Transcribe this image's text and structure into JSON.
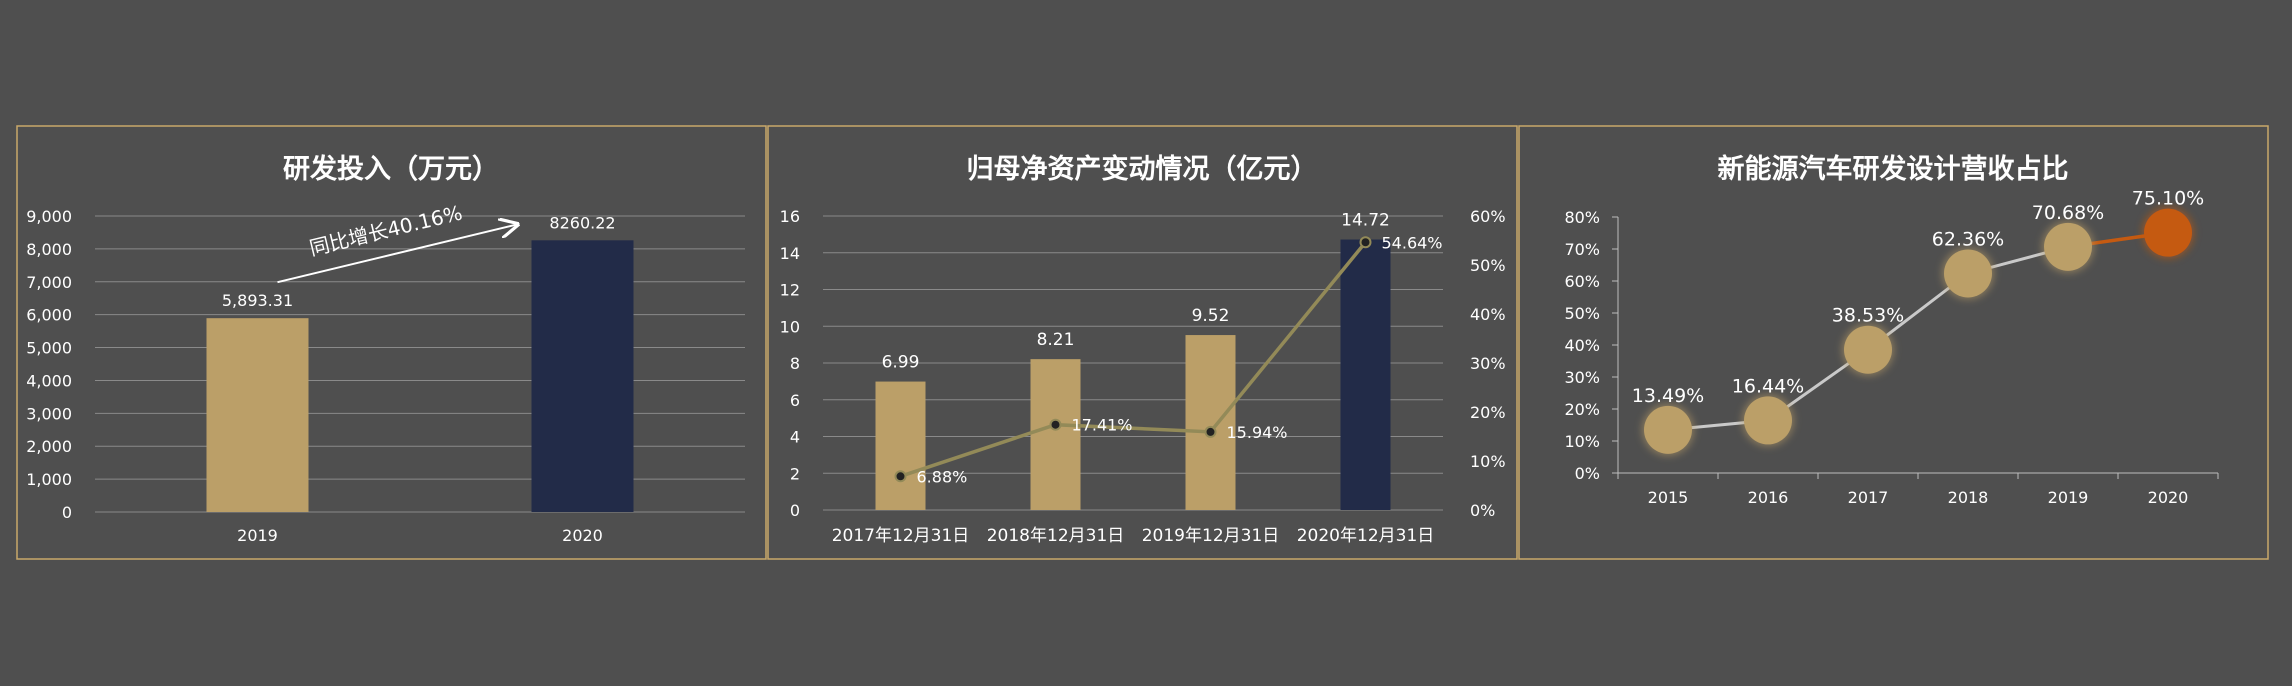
{
  "colors": {
    "background": "#4f4f4f",
    "frame": "#c9a86a",
    "gold": "#bb9f68",
    "navy": "#222b48",
    "line_olive": "#938a58",
    "orange": "#c55a11",
    "text": "#ffffff",
    "grid": "#8a8a8a"
  },
  "chart_data": [
    {
      "type": "bar",
      "title": "研发投入（万元）",
      "categories": [
        "2019",
        "2020"
      ],
      "values": [
        5893.31,
        8260.22
      ],
      "value_labels": [
        "5,893.31",
        "8260.22"
      ],
      "ylim": [
        0,
        9000
      ],
      "yticks": [
        "0",
        "1,000",
        "2,000",
        "3,000",
        "4,000",
        "5,000",
        "6,000",
        "7,000",
        "8,000",
        "9,000"
      ],
      "grid": true,
      "annotation": "同比增长40.16%"
    },
    {
      "type": "bar",
      "title": "归母净资产变动情况（亿元）",
      "categories": [
        "2017年12月31日",
        "2018年12月31日",
        "2019年12月31日",
        "2020年12月31日"
      ],
      "values": [
        6.99,
        8.21,
        9.52,
        14.72
      ],
      "value_labels": [
        "6.99",
        "8.21",
        "9.52",
        "14.72"
      ],
      "ylim": [
        0,
        16
      ],
      "yticks": [
        "0",
        "2",
        "4",
        "6",
        "8",
        "10",
        "12",
        "14",
        "16"
      ],
      "line_values": [
        6.88,
        17.41,
        15.94,
        54.64
      ],
      "line_labels": [
        "6.88%",
        "17.41%",
        "15.94%",
        "54.64%"
      ],
      "y2lim": [
        0,
        60
      ],
      "y2ticks": [
        "0%",
        "10%",
        "20%",
        "30%",
        "40%",
        "50%",
        "60%"
      ],
      "grid": true
    },
    {
      "type": "line",
      "title": "新能源汽车研发设计营收占比",
      "categories": [
        "2015",
        "2016",
        "2017",
        "2018",
        "2019",
        "2020"
      ],
      "values": [
        13.49,
        16.44,
        38.53,
        62.36,
        70.68,
        75.1
      ],
      "value_labels": [
        "13.49%",
        "16.44%",
        "38.53%",
        "62.36%",
        "70.68%",
        "75.10%"
      ],
      "ylim": [
        0,
        80
      ],
      "yticks": [
        "0%",
        "10%",
        "20%",
        "30%",
        "40%",
        "50%",
        "60%",
        "70%",
        "80%"
      ],
      "grid": false
    }
  ]
}
